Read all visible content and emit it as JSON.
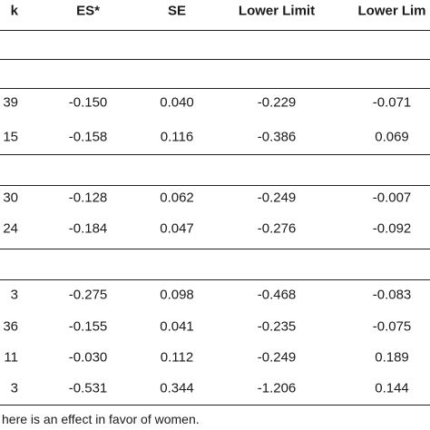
{
  "table": {
    "header": [
      "k",
      "ES*",
      "SE",
      "Lower Limit",
      "Lower Lim"
    ],
    "groups": [
      {
        "rows": [
          [
            "39",
            "-0.150",
            "0.040",
            "-0.229",
            "-0.071"
          ],
          [
            "15",
            "-0.158",
            "0.116",
            "-0.386",
            "0.069"
          ]
        ]
      },
      {
        "rows": [
          [
            "30",
            "-0.128",
            "0.062",
            "-0.249",
            "-0.007"
          ],
          [
            "24",
            "-0.184",
            "0.047",
            "-0.276",
            "-0.092"
          ]
        ]
      },
      {
        "rows": [
          [
            "3",
            "-0.275",
            "0.098",
            "-0.468",
            "-0.083"
          ],
          [
            "36",
            "-0.155",
            "0.041",
            "-0.235",
            "-0.075"
          ],
          [
            "11",
            "-0.030",
            "0.112",
            "-0.249",
            "0.189"
          ],
          [
            "3",
            "-0.531",
            "0.344",
            "-1.206",
            "0.144"
          ]
        ]
      }
    ]
  },
  "footnote": "here is an effect in favor of women."
}
